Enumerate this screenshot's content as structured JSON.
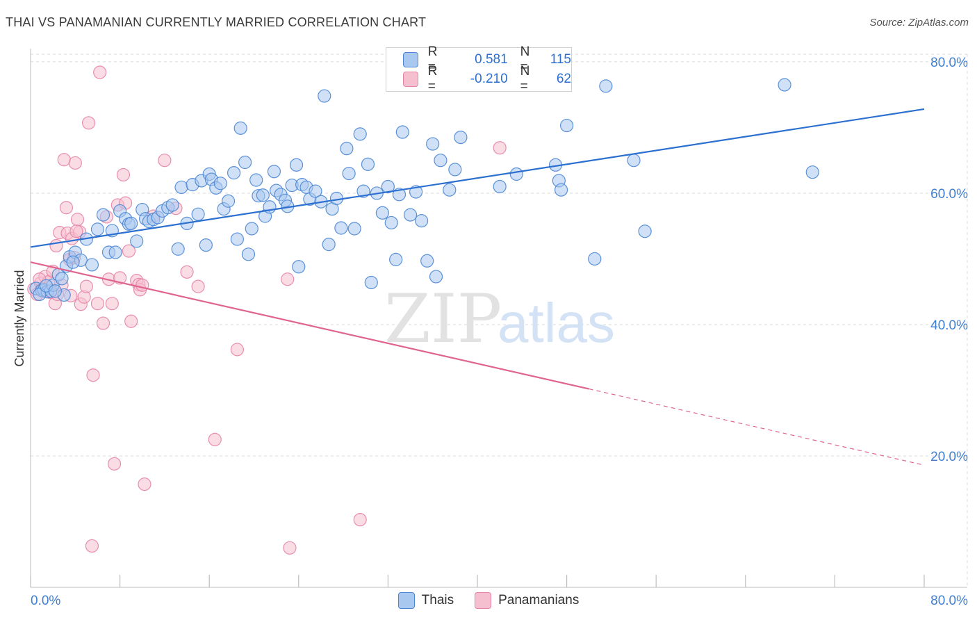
{
  "title": "THAI VS PANAMANIAN CURRENTLY MARRIED CORRELATION CHART",
  "source": "Source: ZipAtlas.com",
  "watermark": {
    "zip": "ZIP",
    "atlas": "atlas"
  },
  "colors": {
    "blue_fill": "#a9c8f0",
    "blue_stroke": "#4a86d4",
    "blue_line": "#2b6fd0",
    "pink_fill": "#f6bfd0",
    "pink_stroke": "#e583a6",
    "pink_line": "#e0648e",
    "tick_text": "#3f7fd1",
    "grid": "#d9d9d9"
  },
  "stats": {
    "thai": {
      "r_label": "R =",
      "r_value": "0.581",
      "n_label": "N =",
      "n_value": "115"
    },
    "pan": {
      "r_label": "R =",
      "r_value": "-0.210",
      "n_label": "N =",
      "n_value": "62"
    }
  },
  "legend": {
    "thai": "Thais",
    "pan": "Panamanians"
  },
  "chart_data": {
    "type": "scatter",
    "title": "THAI VS PANAMANIAN CURRENTLY MARRIED CORRELATION CHART",
    "xlabel": "",
    "ylabel": "Currently Married",
    "xlim": [
      0,
      80
    ],
    "ylim": [
      0,
      82
    ],
    "x_tick_labels": {
      "left": "0.0%",
      "right": "80.0%"
    },
    "y_ticks": [
      {
        "value": 20,
        "label": "20.0%"
      },
      {
        "value": 40,
        "label": "40.0%"
      },
      {
        "value": 60,
        "label": "60.0%"
      },
      {
        "value": 80,
        "label": "80.0%"
      }
    ],
    "series": [
      {
        "name": "Thais",
        "trend": {
          "x0": 0,
          "y0": 51.8,
          "x1": 80,
          "y1": 72.8
        },
        "points": [
          [
            0.5,
            45.5
          ],
          [
            1.0,
            45.2
          ],
          [
            1.2,
            45.3
          ],
          [
            1.5,
            45.0
          ],
          [
            1.8,
            45.1
          ],
          [
            2.0,
            46.0
          ],
          [
            2.5,
            47.6
          ],
          [
            3.0,
            44.5
          ],
          [
            3.2,
            48.9
          ],
          [
            3.5,
            50.3
          ],
          [
            4.0,
            51.0
          ],
          [
            4.5,
            49.8
          ],
          [
            5.0,
            53.0
          ],
          [
            5.5,
            49.1
          ],
          [
            6.0,
            54.5
          ],
          [
            6.5,
            56.7
          ],
          [
            7.0,
            51.0
          ],
          [
            7.3,
            54.3
          ],
          [
            7.6,
            51.0
          ],
          [
            8.0,
            57.3
          ],
          [
            8.5,
            56.1
          ],
          [
            8.8,
            55.3
          ],
          [
            9.0,
            55.4
          ],
          [
            9.5,
            52.7
          ],
          [
            10.0,
            57.5
          ],
          [
            10.3,
            56.1
          ],
          [
            10.6,
            55.7
          ],
          [
            11.0,
            56.0
          ],
          [
            11.4,
            56.3
          ],
          [
            11.8,
            57.3
          ],
          [
            12.3,
            57.8
          ],
          [
            12.7,
            58.2
          ],
          [
            13.2,
            51.5
          ],
          [
            13.5,
            60.9
          ],
          [
            14.0,
            55.4
          ],
          [
            14.5,
            61.3
          ],
          [
            15.0,
            56.8
          ],
          [
            15.3,
            61.9
          ],
          [
            15.7,
            52.1
          ],
          [
            16.0,
            62.9
          ],
          [
            16.2,
            62.1
          ],
          [
            16.6,
            60.8
          ],
          [
            17.0,
            61.5
          ],
          [
            17.3,
            57.6
          ],
          [
            17.7,
            58.8
          ],
          [
            18.2,
            63.1
          ],
          [
            18.5,
            53.0
          ],
          [
            18.8,
            69.9
          ],
          [
            19.2,
            64.7
          ],
          [
            19.5,
            50.7
          ],
          [
            19.8,
            54.6
          ],
          [
            20.2,
            62.0
          ],
          [
            20.4,
            59.6
          ],
          [
            20.8,
            59.7
          ],
          [
            21.0,
            56.5
          ],
          [
            21.4,
            57.9
          ],
          [
            21.8,
            63.3
          ],
          [
            22.0,
            60.4
          ],
          [
            22.4,
            59.8
          ],
          [
            22.8,
            58.9
          ],
          [
            23.0,
            58.0
          ],
          [
            23.4,
            61.2
          ],
          [
            23.8,
            64.3
          ],
          [
            24.0,
            48.8
          ],
          [
            24.3,
            61.3
          ],
          [
            24.7,
            60.9
          ],
          [
            25.0,
            59.1
          ],
          [
            25.5,
            60.3
          ],
          [
            26.0,
            58.7
          ],
          [
            26.3,
            74.8
          ],
          [
            26.7,
            52.2
          ],
          [
            27.0,
            57.6
          ],
          [
            27.4,
            59.2
          ],
          [
            27.8,
            54.7
          ],
          [
            28.3,
            66.8
          ],
          [
            28.5,
            63.0
          ],
          [
            29.0,
            54.6
          ],
          [
            29.5,
            69.0
          ],
          [
            29.8,
            60.3
          ],
          [
            30.2,
            64.4
          ],
          [
            30.5,
            46.4
          ],
          [
            31.0,
            60.0
          ],
          [
            31.5,
            57.0
          ],
          [
            32.0,
            61.0
          ],
          [
            32.3,
            55.5
          ],
          [
            32.7,
            49.9
          ],
          [
            33.0,
            59.8
          ],
          [
            33.3,
            69.3
          ],
          [
            34.0,
            56.7
          ],
          [
            34.5,
            60.2
          ],
          [
            35.0,
            55.8
          ],
          [
            35.5,
            49.7
          ],
          [
            36.0,
            67.5
          ],
          [
            36.3,
            47.3
          ],
          [
            36.7,
            65.0
          ],
          [
            37.5,
            60.5
          ],
          [
            38.0,
            63.6
          ],
          [
            38.5,
            68.5
          ],
          [
            42.0,
            61.0
          ],
          [
            43.5,
            62.9
          ],
          [
            47.0,
            64.3
          ],
          [
            47.3,
            61.9
          ],
          [
            47.5,
            60.5
          ],
          [
            48.0,
            70.3
          ],
          [
            50.5,
            50.0
          ],
          [
            51.5,
            76.3
          ],
          [
            54.0,
            65.0
          ],
          [
            55.0,
            54.2
          ],
          [
            67.5,
            76.5
          ],
          [
            70.0,
            63.2
          ],
          [
            0.8,
            44.6
          ],
          [
            1.4,
            45.9
          ],
          [
            2.2,
            45.1
          ],
          [
            2.8,
            47.0
          ],
          [
            3.8,
            49.5
          ]
        ]
      },
      {
        "name": "Panamanians",
        "trend": {
          "x0": 0,
          "y0": 49.5,
          "x1": 50,
          "y1": 30.2,
          "dash_x1": 80,
          "dash_y1": 18.6
        },
        "points": [
          [
            0.3,
            45.4
          ],
          [
            0.6,
            44.6
          ],
          [
            0.9,
            46.3
          ],
          [
            1.1,
            45.1
          ],
          [
            1.3,
            47.3
          ],
          [
            1.6,
            46.5
          ],
          [
            1.8,
            44.9
          ],
          [
            2.0,
            48.1
          ],
          [
            2.2,
            43.2
          ],
          [
            2.4,
            44.6
          ],
          [
            2.6,
            54.0
          ],
          [
            2.8,
            46.0
          ],
          [
            3.0,
            65.1
          ],
          [
            3.2,
            57.8
          ],
          [
            3.3,
            53.9
          ],
          [
            3.5,
            49.9
          ],
          [
            3.7,
            53.1
          ],
          [
            3.9,
            50.2
          ],
          [
            4.0,
            64.6
          ],
          [
            4.2,
            56.0
          ],
          [
            4.4,
            54.1
          ],
          [
            4.5,
            43.1
          ],
          [
            4.8,
            44.2
          ],
          [
            5.0,
            45.8
          ],
          [
            5.2,
            70.7
          ],
          [
            5.6,
            32.3
          ],
          [
            6.0,
            43.2
          ],
          [
            6.2,
            78.4
          ],
          [
            6.5,
            40.2
          ],
          [
            6.8,
            56.4
          ],
          [
            7.0,
            46.9
          ],
          [
            7.3,
            43.2
          ],
          [
            7.5,
            18.8
          ],
          [
            7.8,
            58.2
          ],
          [
            8.0,
            47.1
          ],
          [
            8.3,
            62.8
          ],
          [
            8.5,
            58.5
          ],
          [
            8.8,
            51.2
          ],
          [
            9.0,
            40.5
          ],
          [
            9.5,
            46.7
          ],
          [
            9.7,
            46.1
          ],
          [
            9.8,
            45.3
          ],
          [
            10.0,
            46.0
          ],
          [
            10.2,
            15.7
          ],
          [
            11.0,
            56.5
          ],
          [
            12.0,
            65.0
          ],
          [
            13.0,
            57.7
          ],
          [
            14.0,
            48.0
          ],
          [
            15.0,
            45.8
          ],
          [
            16.5,
            22.5
          ],
          [
            18.5,
            36.2
          ],
          [
            23.0,
            46.9
          ],
          [
            23.2,
            6.0
          ],
          [
            29.5,
            10.3
          ],
          [
            42.0,
            66.9
          ],
          [
            5.5,
            6.3
          ],
          [
            3.6,
            44.4
          ],
          [
            4.1,
            54.2
          ],
          [
            1.0,
            45.4
          ],
          [
            1.5,
            45.0
          ],
          [
            2.3,
            52.0
          ],
          [
            0.8,
            46.9
          ]
        ]
      }
    ]
  }
}
